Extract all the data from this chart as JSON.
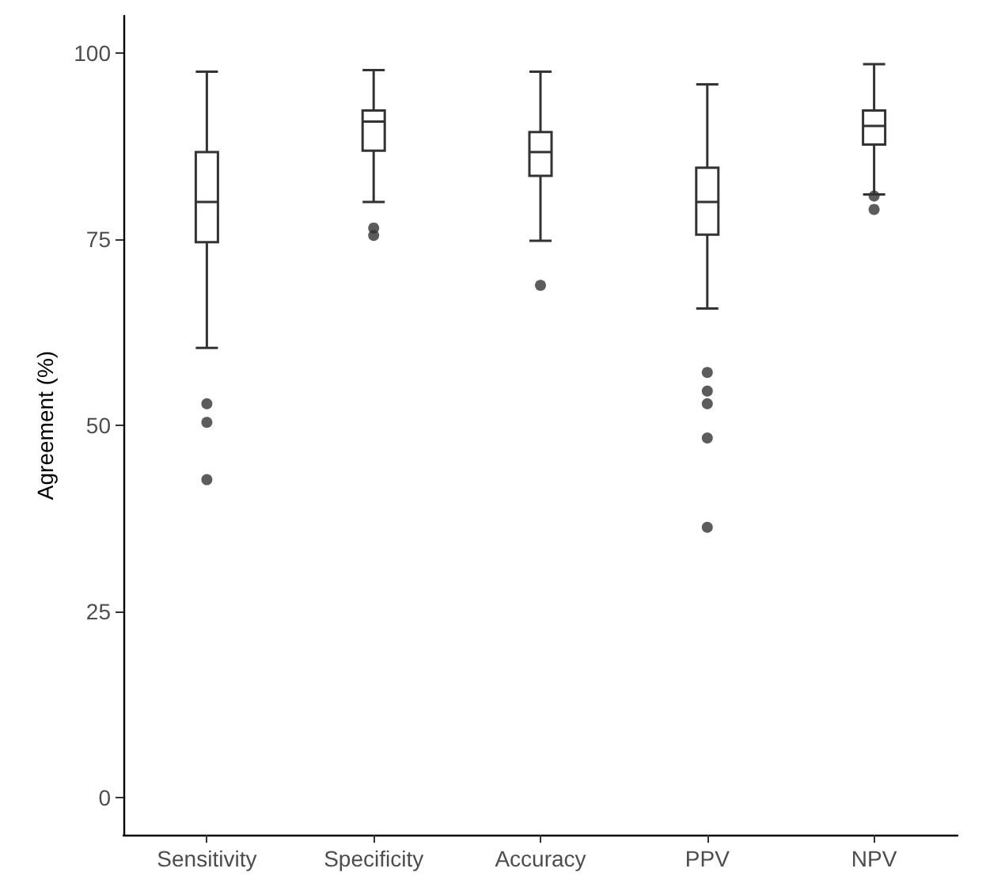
{
  "chart_data": {
    "type": "box",
    "ylabel": "Agreement (%)",
    "categories": [
      "Sensitivity",
      "Specificity",
      "Accuracy",
      "PPV",
      "NPV"
    ],
    "boxes": [
      {
        "low": 60.4,
        "q1": 74.6,
        "median": 80,
        "q3": 86.7,
        "high": 97.5,
        "outliers": [
          52.9,
          50.4,
          42.7
        ]
      },
      {
        "low": 80,
        "q1": 86.9,
        "median": 90.8,
        "q3": 92.3,
        "high": 97.7,
        "outliers": [
          76.5,
          75.5
        ]
      },
      {
        "low": 74.8,
        "q1": 83.5,
        "median": 86.7,
        "q3": 89.4,
        "high": 97.5,
        "outliers": [
          68.8
        ]
      },
      {
        "low": 65.7,
        "q1": 75.6,
        "median": 80,
        "q3": 84.6,
        "high": 95.8,
        "outliers": [
          57.1,
          54.6,
          52.9,
          48.3,
          36.3
        ]
      },
      {
        "low": 81,
        "q1": 87.7,
        "median": 90.2,
        "q3": 92.3,
        "high": 98.5,
        "outliers": [
          80.8,
          79
        ]
      }
    ],
    "color": "#333333",
    "ylim": [
      -5,
      105
    ],
    "yticks": [
      0,
      25,
      50,
      75,
      100
    ],
    "grid": false
  }
}
